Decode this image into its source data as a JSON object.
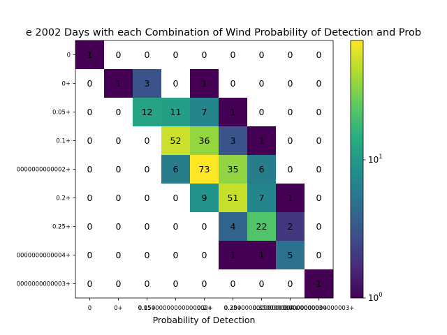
{
  "chart_data": {
    "type": "heatmap",
    "title": "e 2002 Days with each Combination of Wind Probability of Detection and Prob",
    "xlabel": "Probability of Detection",
    "ylabel": "",
    "x_categories": [
      "0",
      "0+",
      "0.05+",
      "0.15000000000000002+",
      "0.2+",
      "0.25+",
      "0.30000000000000004+",
      "0.35000000000000003+",
      ""
    ],
    "x_tick_labels": [
      "0",
      "0+",
      "0.05+",
      "0.1500000000000002+",
      "0.2+",
      "0.25+",
      "0.30000000000000004+",
      "0.35000000000000003+",
      "0.4000000000000003+"
    ],
    "x_tick_labels_visible": [
      "0",
      "0+",
      "0.05+0.15000000000000002+0.25000000000000004+0.35000000000000003+"
    ],
    "y_categories": [
      "0",
      "0+",
      "0.05+",
      "0.1+",
      "0000000000002+",
      "0.2+",
      "0.25+",
      "0000000000004+",
      "0000000000003+"
    ],
    "values": [
      [
        1,
        0,
        0,
        0,
        0,
        0,
        0,
        0,
        0
      ],
      [
        0,
        1,
        3,
        0,
        1,
        0,
        0,
        0,
        0
      ],
      [
        0,
        0,
        12,
        11,
        7,
        1,
        0,
        0,
        0
      ],
      [
        0,
        0,
        0,
        52,
        36,
        3,
        1,
        0,
        0
      ],
      [
        0,
        0,
        0,
        6,
        73,
        35,
        6,
        0,
        0
      ],
      [
        0,
        0,
        0,
        0,
        9,
        51,
        7,
        1,
        0
      ],
      [
        0,
        0,
        0,
        0,
        0,
        4,
        22,
        2,
        0
      ],
      [
        0,
        0,
        0,
        0,
        0,
        1,
        1,
        5,
        0
      ],
      [
        0,
        0,
        0,
        0,
        0,
        0,
        0,
        0,
        1
      ]
    ],
    "colormap": "viridis",
    "color_scale": "log",
    "color_range": [
      1,
      73
    ],
    "colorbar_ticks": [
      {
        "value": 1,
        "label_base": "10",
        "label_exp": "0"
      },
      {
        "value": 10,
        "label_base": "10",
        "label_exp": "1"
      }
    ],
    "zero_color": "#ffffff",
    "grid": false
  }
}
